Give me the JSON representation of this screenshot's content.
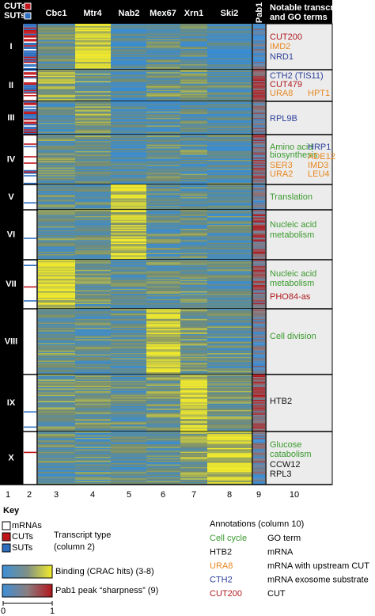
{
  "header": {
    "legend_types": [
      "CUTs",
      "SUTs"
    ],
    "columns": [
      "Cbc1",
      "Mtr4",
      "Nab2",
      "Mex67",
      "Xrn1",
      "Ski2",
      "Pab1"
    ],
    "notes_title": [
      "Notable transcripts",
      "and GO terms"
    ]
  },
  "clusters": [
    {
      "label": "I",
      "notes": [
        "CUT200",
        "IMD2",
        "NRD1"
      ]
    },
    {
      "label": "II",
      "notes": [
        "CTH2 (TIS11)",
        "CUT479",
        "URA8",
        "HPT1"
      ]
    },
    {
      "label": "III",
      "notes": [
        "RPL9B"
      ]
    },
    {
      "label": "IV",
      "notes": [
        "Amino acid",
        "biosynthesis",
        "HRP1",
        "ADE12",
        "SER3",
        "IMD3",
        "URA2",
        "LEU4"
      ]
    },
    {
      "label": "V",
      "notes": [
        "Translation"
      ]
    },
    {
      "label": "VI",
      "notes": [
        "Nucleic acid",
        "metabolism"
      ]
    },
    {
      "label": "VII",
      "notes": [
        "Nucleic acid",
        "metabolism",
        "PHO84-as"
      ]
    },
    {
      "label": "VIII",
      "notes": [
        "Cell division"
      ]
    },
    {
      "label": "IX",
      "notes": [
        "HTB2"
      ]
    },
    {
      "label": "X",
      "notes": [
        "Glucose",
        "catabolism",
        "CCW12",
        "RPL3"
      ]
    }
  ],
  "column_numbers": [
    "1",
    "2",
    "3",
    "4",
    "5",
    "6",
    "7",
    "8",
    "9",
    "10"
  ],
  "key": {
    "title": "Key",
    "transcript_types": [
      "mRNAs",
      "CUTs",
      "SUTs"
    ],
    "transcript_type_label": [
      "Transcript type",
      "(column 2)"
    ],
    "binding": "Binding (CRAC hits) (3-8)",
    "pab1": "Pab1 peak “sharpness” (9)",
    "scale": [
      "0",
      "1"
    ],
    "annotations_title": "Annotations (column 10)",
    "annotations": [
      {
        "example": "Cell cycle",
        "meaning": "GO term"
      },
      {
        "example": "HTB2",
        "meaning": "mRNA"
      },
      {
        "example": "URA8",
        "meaning": "mRNA with upstream CUT"
      },
      {
        "example": "CTH2",
        "meaning": "mRNA exosome substrate"
      },
      {
        "example": "CUT200",
        "meaning": "CUT"
      }
    ]
  }
}
